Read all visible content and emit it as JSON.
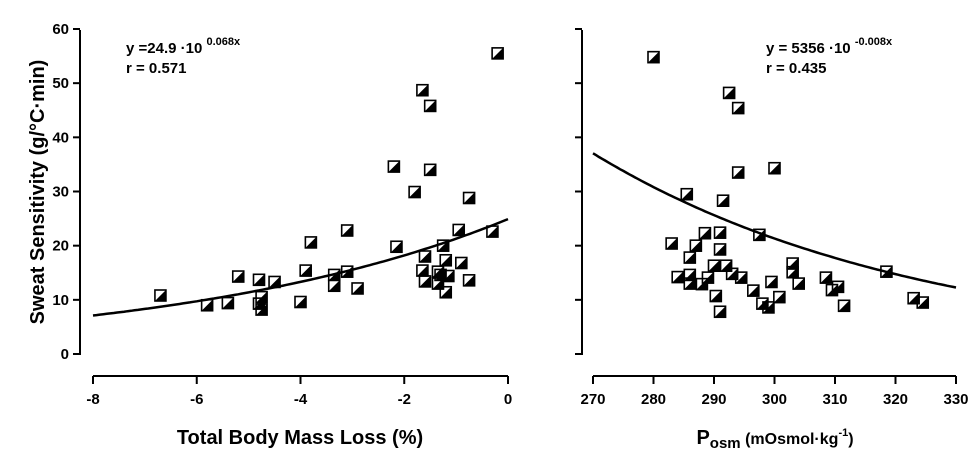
{
  "chart_data": [
    {
      "type": "scatter",
      "ylabel": "Sweat Sensitivity (g/°C·min)",
      "xlabel": "Total Body Mass Loss (%)",
      "xlim": [
        -8,
        0
      ],
      "ylim": [
        0,
        60
      ],
      "xticks": [
        "-8",
        "-6",
        "-4",
        "-2",
        "0"
      ],
      "yticks": [
        "0",
        "10",
        "20",
        "30",
        "40",
        "50",
        "60"
      ],
      "equation": {
        "lead": "y =24.9 ·10 ",
        "exponent": "0.068x",
        "r": "r = 0.571"
      },
      "fit": {
        "a": 24.9,
        "b": 0.068
      },
      "points": [
        [
          -6.7,
          10.8
        ],
        [
          -5.8,
          9.0
        ],
        [
          -5.4,
          9.4
        ],
        [
          -5.2,
          14.3
        ],
        [
          -4.8,
          13.7
        ],
        [
          -4.8,
          9.3
        ],
        [
          -4.75,
          10.5
        ],
        [
          -4.75,
          8.2
        ],
        [
          -4.5,
          13.3
        ],
        [
          -4.0,
          9.6
        ],
        [
          -3.9,
          15.4
        ],
        [
          -3.8,
          20.6
        ],
        [
          -3.35,
          14.6
        ],
        [
          -3.35,
          12.6
        ],
        [
          -3.1,
          22.8
        ],
        [
          -3.1,
          15.2
        ],
        [
          -2.9,
          12.1
        ],
        [
          -2.2,
          34.6
        ],
        [
          -2.15,
          19.8
        ],
        [
          -1.8,
          29.9
        ],
        [
          -1.65,
          48.7
        ],
        [
          -1.65,
          15.4
        ],
        [
          -1.6,
          13.4
        ],
        [
          -1.6,
          18.0
        ],
        [
          -1.5,
          45.8
        ],
        [
          -1.5,
          34.0
        ],
        [
          -1.35,
          15.2
        ],
        [
          -1.35,
          13.0
        ],
        [
          -1.3,
          14.6
        ],
        [
          -1.25,
          20.0
        ],
        [
          -1.2,
          11.4
        ],
        [
          -1.2,
          17.3
        ],
        [
          -1.15,
          14.4
        ],
        [
          -0.95,
          22.9
        ],
        [
          -0.9,
          16.8
        ],
        [
          -0.75,
          28.8
        ],
        [
          -0.75,
          13.6
        ],
        [
          -0.3,
          22.6
        ],
        [
          -0.2,
          55.5
        ]
      ]
    },
    {
      "type": "scatter",
      "xlabel_main": "P",
      "xlabel_sub": "osm",
      "xlabel_units": " (mOsmol·kg",
      "xlabel_units_sup": "-1",
      "xlabel_units_end": ")",
      "xlim": [
        270,
        330
      ],
      "ylim": [
        0,
        60
      ],
      "xticks": [
        "270",
        "280",
        "290",
        "300",
        "310",
        "320",
        "330"
      ],
      "equation": {
        "lead": "y = 5356  ·10 ",
        "exponent": "-0.008x",
        "r": "r = 0.435"
      },
      "fit": {
        "a": 5356,
        "b": -0.008
      },
      "points": [
        [
          280,
          54.8
        ],
        [
          283,
          20.4
        ],
        [
          284,
          14.2
        ],
        [
          285.5,
          29.5
        ],
        [
          286,
          14.6
        ],
        [
          286,
          17.8
        ],
        [
          286,
          13.0
        ],
        [
          287,
          20.0
        ],
        [
          288,
          12.9
        ],
        [
          288.5,
          22.3
        ],
        [
          289,
          14.1
        ],
        [
          290,
          16.3
        ],
        [
          290.3,
          10.7
        ],
        [
          291,
          22.4
        ],
        [
          291,
          19.3
        ],
        [
          291,
          7.8
        ],
        [
          291.5,
          28.3
        ],
        [
          292,
          16.3
        ],
        [
          292.5,
          48.2
        ],
        [
          293,
          14.8
        ],
        [
          294,
          33.5
        ],
        [
          294,
          45.4
        ],
        [
          294.5,
          14.1
        ],
        [
          296.5,
          11.7
        ],
        [
          297.5,
          22.0
        ],
        [
          298,
          9.3
        ],
        [
          299,
          8.6
        ],
        [
          299.5,
          13.3
        ],
        [
          300,
          34.3
        ],
        [
          300.8,
          10.5
        ],
        [
          303,
          16.7
        ],
        [
          303,
          15.1
        ],
        [
          304,
          13.0
        ],
        [
          308.5,
          14.1
        ],
        [
          309.5,
          11.8
        ],
        [
          310.5,
          12.4
        ],
        [
          311.5,
          8.9
        ],
        [
          318.5,
          15.2
        ],
        [
          323,
          10.3
        ],
        [
          324.5,
          9.5
        ]
      ]
    }
  ]
}
